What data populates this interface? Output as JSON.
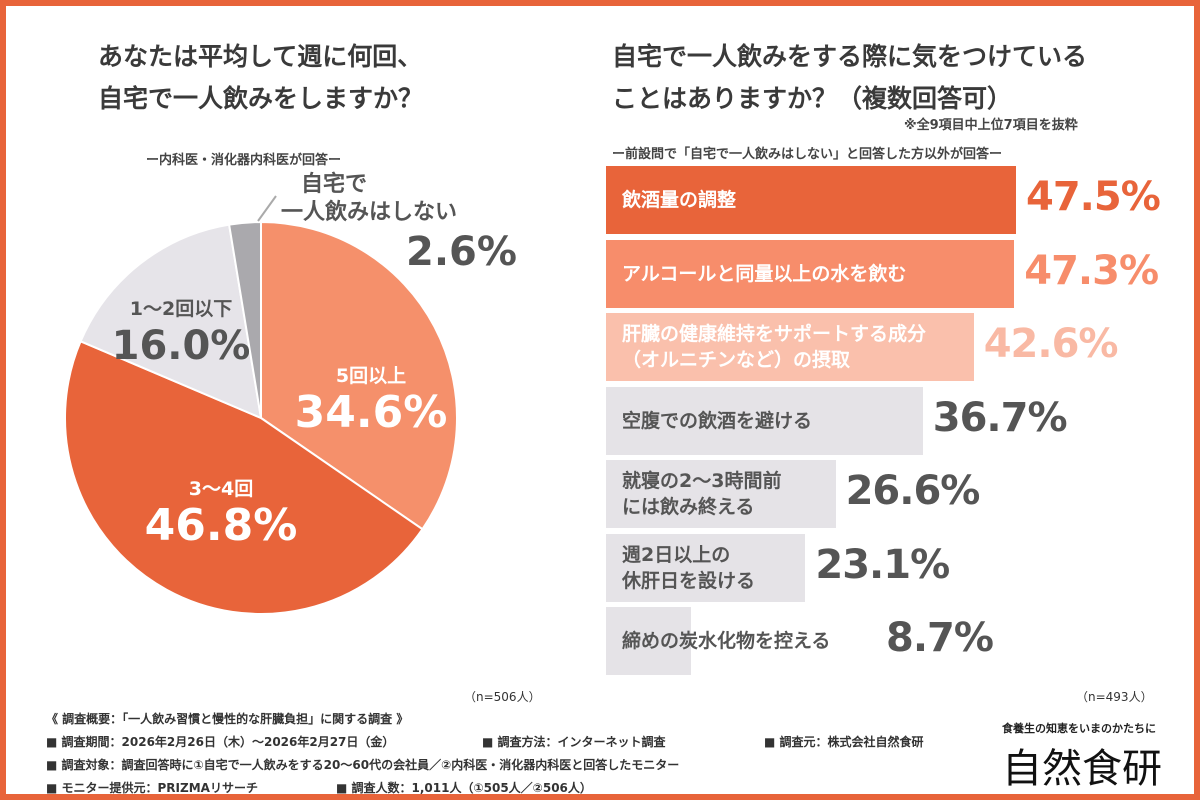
{
  "left": {
    "title_line1": "あなたは平均して週に何回、",
    "title_line2": "自宅で一人飲みをしますか？",
    "respondents": "ー内科医・消化器内科医が回答ー",
    "n": "（n=506人）"
  },
  "right": {
    "title_line1": "自宅で一人飲みをする際に気をつけている",
    "title_line2": "ことはありますか？（複数回答可）",
    "note": "※全9項目中上位7項目を抜粋",
    "respondents": "ー前設問で「自宅で一人飲みはしない」と回答した方以外が回答ー",
    "n": "（n=493人）"
  },
  "chart_data": [
    {
      "type": "pie",
      "slices": [
        {
          "label": "5回以上",
          "value": 34.6,
          "display": "34.6%",
          "color": "#F5906B"
        },
        {
          "label": "3〜4回",
          "value": 46.8,
          "display": "46.8%",
          "color": "#E8643A"
        },
        {
          "label": "1〜2回以下",
          "value": 16.0,
          "display": "16.0%",
          "color": "#E6E4E9"
        },
        {
          "label_line1": "自宅で",
          "label_line2": "一人飲みはしない",
          "value": 2.6,
          "display": "2.6%",
          "color": "#AAA9AD"
        }
      ]
    },
    {
      "type": "bar",
      "orientation": "horizontal",
      "bars": [
        {
          "label_line1": "飲酒量の調整",
          "label_line2": "",
          "value": 47.5,
          "display": "47.5%",
          "color": "#E8643A",
          "text": "#fff",
          "vcolor": "#E8643A"
        },
        {
          "label_line1": "アルコールと同量以上の水を飲む",
          "label_line2": "",
          "value": 47.3,
          "display": "47.3%",
          "color": "#F78D6B",
          "text": "#fff",
          "vcolor": "#F78D6B"
        },
        {
          "label_line1": "肝臓の健康維持をサポートする成分",
          "label_line2": "（オルニチンなど）の摂取",
          "value": 42.6,
          "display": "42.6%",
          "color": "#FAC0AC",
          "text": "#fff",
          "vcolor": "#F9B9A4"
        },
        {
          "label_line1": "空腹での飲酒を避ける",
          "label_line2": "",
          "value": 36.7,
          "display": "36.7%",
          "color": "#E5E3E7",
          "text": "#555",
          "vcolor": "#555"
        },
        {
          "label_line1": "就寝の2〜3時間前",
          "label_line2": "には飲み終える",
          "value": 26.6,
          "display": "26.6%",
          "color": "#E5E3E7",
          "text": "#555",
          "vcolor": "#555"
        },
        {
          "label_line1": "週2日以上の",
          "label_line2": "休肝日を設ける",
          "value": 23.1,
          "display": "23.1%",
          "color": "#E5E3E7",
          "text": "#555",
          "vcolor": "#555"
        },
        {
          "label_line1": "締めの炭水化物を控える",
          "label_line2": "",
          "value": 8.7,
          "display": "8.7%",
          "color": "#E5E3E7",
          "text": "#555",
          "vcolor": "#555"
        }
      ]
    }
  ],
  "footer": {
    "summary": "《 調査概要：「一人飲み習慣と慢性的な肝臓負担」に関する調査 》",
    "period": "■ 調査期間：2026年2月26日（木）〜2026年2月27日（金）",
    "method": "■ 調査方法：インターネット調査",
    "org": "■ 調査元：株式会社自然食研",
    "target": "■ 調査対象：調査回答時に①自宅で一人飲みをする20〜60代の会社員／②内科医・消化器内科医と回答したモニター",
    "provider": "■ モニター提供元：PRIZMAリサーチ",
    "count": "■ 調査人数：1,011人（①505人／②506人）"
  },
  "brand": {
    "tagline": "食養生の知恵をいまのかたちに",
    "logo": "自然食研"
  },
  "colors": {
    "accent": "#E8643A"
  }
}
